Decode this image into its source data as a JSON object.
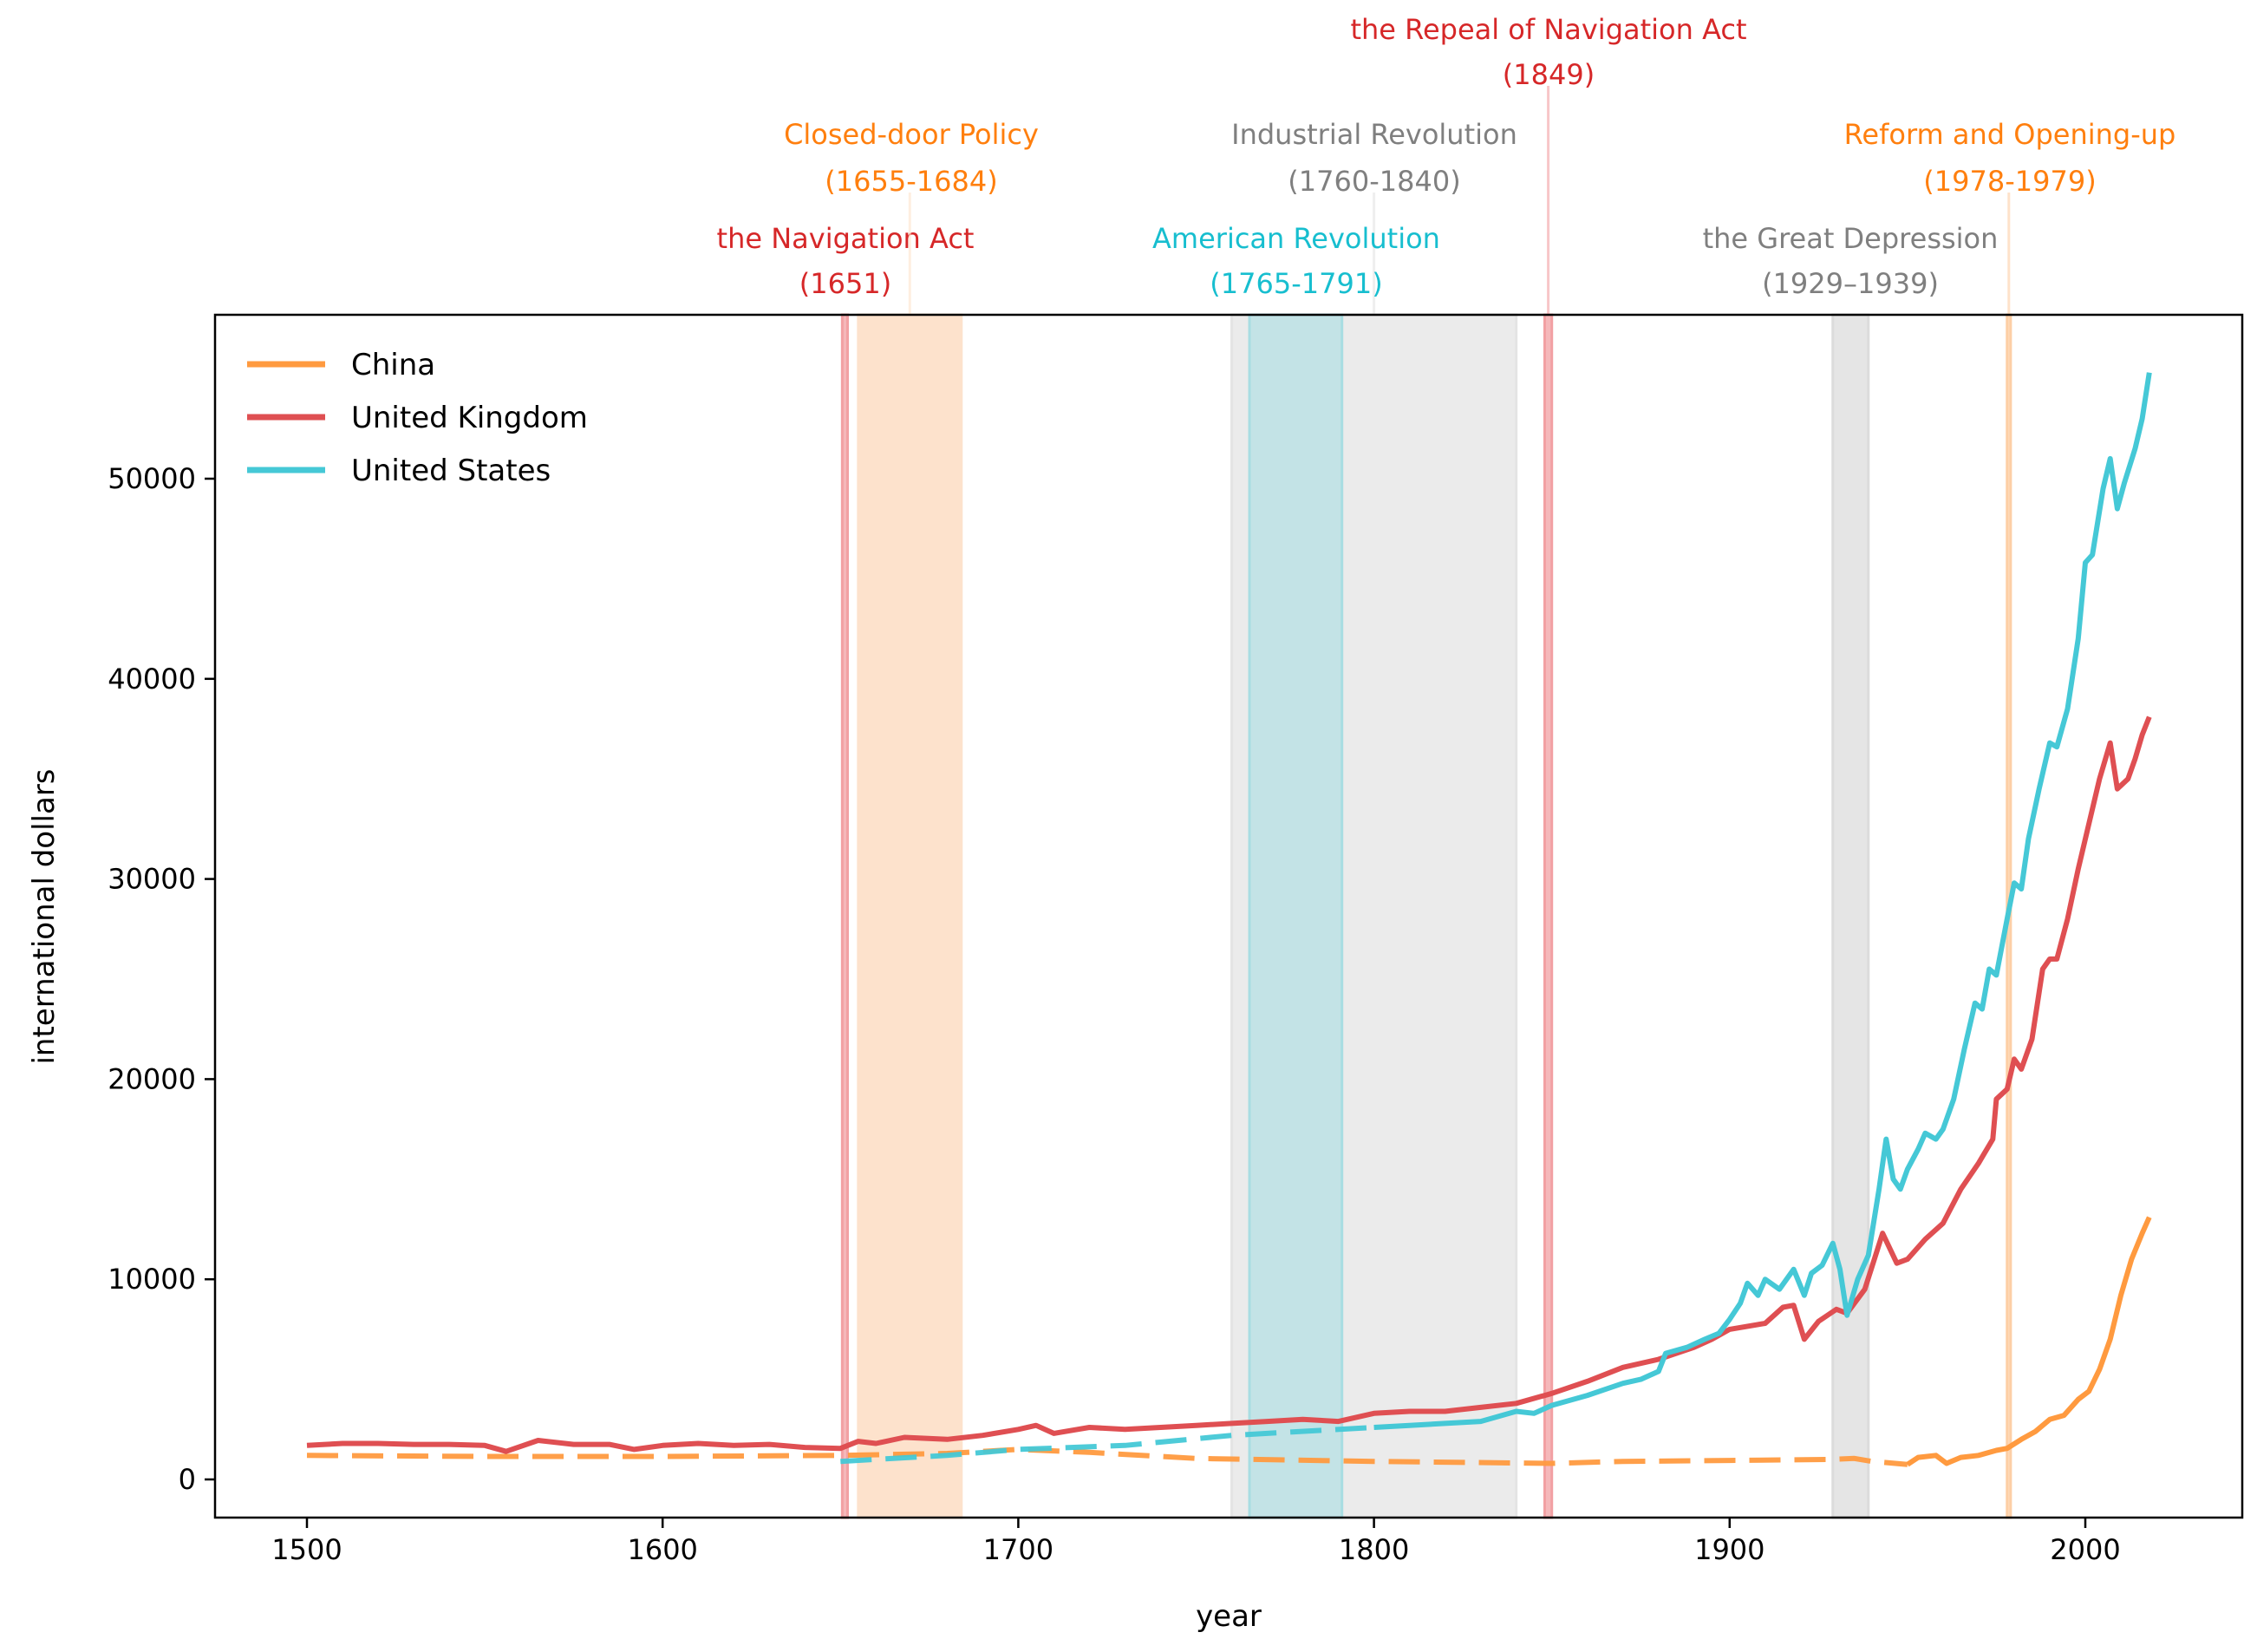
{
  "chart_data": {
    "type": "line",
    "title": "",
    "xlabel": "year",
    "ylabel": "international dollars",
    "xlim": [
      1474,
      2044
    ],
    "ylim": [
      -1850,
      58100
    ],
    "xticks": [
      1500,
      1600,
      1700,
      1800,
      1900,
      2000
    ],
    "yticks": [
      0,
      10000,
      20000,
      30000,
      40000,
      50000
    ],
    "grid": false,
    "legend_position": "top-left",
    "series": [
      {
        "name": "China",
        "color": "#ff9a3f",
        "dashed_until": 1950,
        "points": [
          [
            1500,
            1200
          ],
          [
            1550,
            1150
          ],
          [
            1600,
            1150
          ],
          [
            1650,
            1200
          ],
          [
            1680,
            1300
          ],
          [
            1700,
            1500
          ],
          [
            1720,
            1350
          ],
          [
            1750,
            1050
          ],
          [
            1800,
            900
          ],
          [
            1850,
            800
          ],
          [
            1870,
            900
          ],
          [
            1900,
            950
          ],
          [
            1929,
            1000
          ],
          [
            1935,
            1050
          ],
          [
            1940,
            900
          ],
          [
            1950,
            750
          ],
          [
            1953,
            1100
          ],
          [
            1958,
            1200
          ],
          [
            1961,
            800
          ],
          [
            1965,
            1100
          ],
          [
            1970,
            1200
          ],
          [
            1975,
            1450
          ],
          [
            1978,
            1550
          ],
          [
            1982,
            2000
          ],
          [
            1986,
            2400
          ],
          [
            1990,
            3000
          ],
          [
            1994,
            3200
          ],
          [
            1998,
            4000
          ],
          [
            2001,
            4400
          ],
          [
            2004,
            5500
          ],
          [
            2007,
            7000
          ],
          [
            2010,
            9200
          ],
          [
            2013,
            11000
          ],
          [
            2016,
            12300
          ],
          [
            2018,
            13100
          ]
        ]
      },
      {
        "name": "United Kingdom",
        "color": "#df4f52",
        "dashed_until": null,
        "points": [
          [
            1500,
            1700
          ],
          [
            1510,
            1800
          ],
          [
            1520,
            1800
          ],
          [
            1530,
            1750
          ],
          [
            1540,
            1750
          ],
          [
            1550,
            1700
          ],
          [
            1556,
            1400
          ],
          [
            1565,
            1950
          ],
          [
            1575,
            1750
          ],
          [
            1585,
            1750
          ],
          [
            1592,
            1500
          ],
          [
            1600,
            1700
          ],
          [
            1610,
            1800
          ],
          [
            1620,
            1700
          ],
          [
            1630,
            1750
          ],
          [
            1640,
            1600
          ],
          [
            1650,
            1550
          ],
          [
            1655,
            1900
          ],
          [
            1660,
            1800
          ],
          [
            1668,
            2100
          ],
          [
            1680,
            2000
          ],
          [
            1690,
            2200
          ],
          [
            1700,
            2500
          ],
          [
            1705,
            2700
          ],
          [
            1710,
            2300
          ],
          [
            1720,
            2600
          ],
          [
            1730,
            2500
          ],
          [
            1740,
            2600
          ],
          [
            1750,
            2700
          ],
          [
            1760,
            2800
          ],
          [
            1770,
            2900
          ],
          [
            1780,
            3000
          ],
          [
            1790,
            2900
          ],
          [
            1800,
            3300
          ],
          [
            1810,
            3400
          ],
          [
            1820,
            3400
          ],
          [
            1830,
            3600
          ],
          [
            1840,
            3800
          ],
          [
            1850,
            4300
          ],
          [
            1860,
            4900
          ],
          [
            1870,
            5600
          ],
          [
            1880,
            6000
          ],
          [
            1890,
            6600
          ],
          [
            1895,
            7000
          ],
          [
            1900,
            7500
          ],
          [
            1910,
            7800
          ],
          [
            1915,
            8600
          ],
          [
            1918,
            8700
          ],
          [
            1921,
            7000
          ],
          [
            1925,
            7900
          ],
          [
            1930,
            8500
          ],
          [
            1933,
            8300
          ],
          [
            1938,
            9500
          ],
          [
            1943,
            12300
          ],
          [
            1947,
            10800
          ],
          [
            1950,
            11000
          ],
          [
            1955,
            12000
          ],
          [
            1960,
            12800
          ],
          [
            1965,
            14500
          ],
          [
            1970,
            15800
          ],
          [
            1974,
            17000
          ],
          [
            1975,
            19000
          ],
          [
            1978,
            19500
          ],
          [
            1980,
            21000
          ],
          [
            1982,
            20500
          ],
          [
            1985,
            22000
          ],
          [
            1988,
            25500
          ],
          [
            1990,
            26000
          ],
          [
            1992,
            26000
          ],
          [
            1995,
            28000
          ],
          [
            1998,
            30500
          ],
          [
            2000,
            32000
          ],
          [
            2004,
            35000
          ],
          [
            2007,
            36800
          ],
          [
            2009,
            34500
          ],
          [
            2012,
            35000
          ],
          [
            2014,
            36000
          ],
          [
            2016,
            37200
          ],
          [
            2018,
            38100
          ]
        ]
      },
      {
        "name": "United States",
        "color": "#45c8d6",
        "dashed_until": 1800,
        "points": [
          [
            1650,
            900
          ],
          [
            1680,
            1200
          ],
          [
            1700,
            1500
          ],
          [
            1730,
            1700
          ],
          [
            1760,
            2200
          ],
          [
            1800,
            2600
          ],
          [
            1810,
            2700
          ],
          [
            1820,
            2800
          ],
          [
            1830,
            2900
          ],
          [
            1840,
            3400
          ],
          [
            1845,
            3300
          ],
          [
            1850,
            3700
          ],
          [
            1860,
            4200
          ],
          [
            1870,
            4800
          ],
          [
            1875,
            5000
          ],
          [
            1880,
            5400
          ],
          [
            1882,
            6300
          ],
          [
            1888,
            6600
          ],
          [
            1893,
            7000
          ],
          [
            1897,
            7300
          ],
          [
            1900,
            8000
          ],
          [
            1903,
            8800
          ],
          [
            1905,
            9800
          ],
          [
            1908,
            9200
          ],
          [
            1910,
            10000
          ],
          [
            1914,
            9500
          ],
          [
            1918,
            10500
          ],
          [
            1921,
            9200
          ],
          [
            1923,
            10300
          ],
          [
            1926,
            10700
          ],
          [
            1929,
            11800
          ],
          [
            1931,
            10500
          ],
          [
            1933,
            8200
          ],
          [
            1936,
            10000
          ],
          [
            1939,
            11200
          ],
          [
            1942,
            14500
          ],
          [
            1944,
            17000
          ],
          [
            1946,
            15000
          ],
          [
            1948,
            14500
          ],
          [
            1950,
            15500
          ],
          [
            1953,
            16500
          ],
          [
            1955,
            17300
          ],
          [
            1958,
            17000
          ],
          [
            1960,
            17500
          ],
          [
            1963,
            19000
          ],
          [
            1966,
            21500
          ],
          [
            1969,
            23800
          ],
          [
            1971,
            23500
          ],
          [
            1973,
            25500
          ],
          [
            1975,
            25200
          ],
          [
            1978,
            28000
          ],
          [
            1980,
            29800
          ],
          [
            1982,
            29500
          ],
          [
            1984,
            32000
          ],
          [
            1987,
            34500
          ],
          [
            1990,
            36800
          ],
          [
            1992,
            36600
          ],
          [
            1995,
            38500
          ],
          [
            1998,
            42000
          ],
          [
            2000,
            45800
          ],
          [
            2002,
            46200
          ],
          [
            2005,
            49500
          ],
          [
            2007,
            51000
          ],
          [
            2009,
            48500
          ],
          [
            2011,
            49800
          ],
          [
            2014,
            51500
          ],
          [
            2016,
            53000
          ],
          [
            2018,
            55300
          ]
        ]
      }
    ],
    "events": [
      {
        "label": "the Navigation Act",
        "years": "(1651)",
        "start": 1650.5,
        "end": 1652,
        "color": "#d62728",
        "fill": "#f2a0a3"
      },
      {
        "label": "Closed-door Policy",
        "years": "(1655-1684)",
        "start": 1655,
        "end": 1684,
        "color": "#ff7f0e",
        "fill": "#fde2cc"
      },
      {
        "label": "Industrial Revolution",
        "years": "(1760-1840)",
        "start": 1760,
        "end": 1840,
        "color": "#7f7f7f",
        "fill": "#e4e4e4"
      },
      {
        "label": "American Revolution",
        "years": "(1765-1791)",
        "start": 1765,
        "end": 1791,
        "color": "#17becf",
        "fill": "#a8dde2"
      },
      {
        "label": "the Repeal of Navigation Act",
        "years": "(1849)",
        "start": 1848,
        "end": 1850,
        "color": "#d62728",
        "fill": "#f2a0a3"
      },
      {
        "label": "the Great Depression",
        "years": "(1929–1939)",
        "start": 1929,
        "end": 1939,
        "color": "#7f7f7f",
        "fill": "#dcdcdc"
      },
      {
        "label": "Reform and Opening-up",
        "years": "(1978-1979)",
        "start": 1978,
        "end": 1979,
        "color": "#ff7f0e",
        "fill": "#fdcfa6"
      }
    ]
  }
}
